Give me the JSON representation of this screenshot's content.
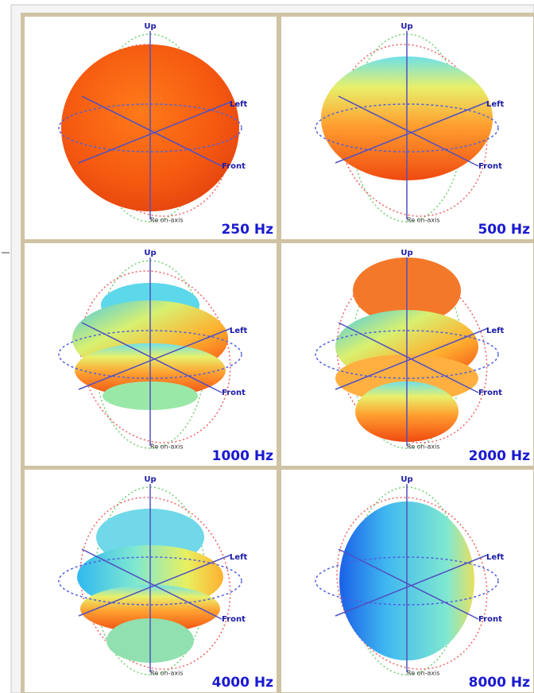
{
  "axis_labels": {
    "up": "Up",
    "left": "Left",
    "front": "Front",
    "reference": "Re on-axis"
  },
  "panels": [
    {
      "label": "250 Hz"
    },
    {
      "label": "500 Hz"
    },
    {
      "label": "1000 Hz"
    },
    {
      "label": "2000 Hz"
    },
    {
      "label": "4000 Hz"
    },
    {
      "label": "8000 Hz"
    }
  ]
}
